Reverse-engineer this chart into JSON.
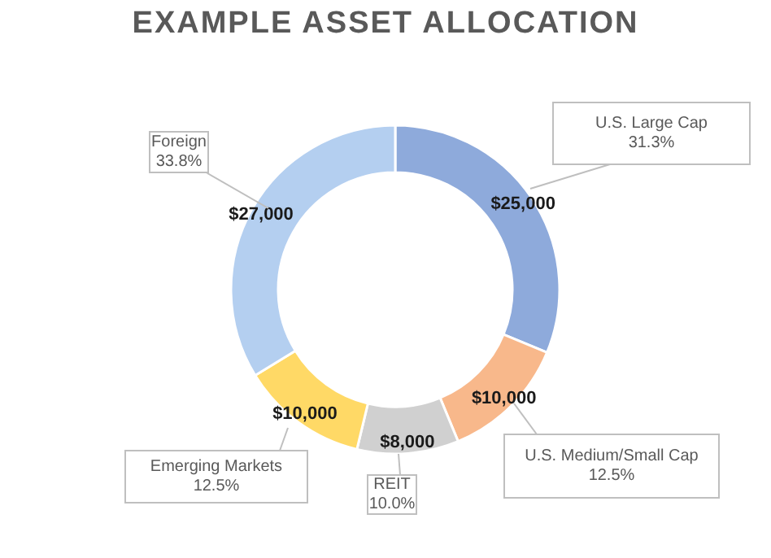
{
  "chart_data": {
    "type": "donut",
    "title": "EXAMPLE ASSET ALLOCATION",
    "categories": [
      "U.S. Large Cap",
      "U.S. Medium/Small Cap",
      "REIT",
      "Emerging Markets",
      "Foreign"
    ],
    "values": [
      25000,
      10000,
      8000,
      10000,
      27000
    ],
    "colors": [
      "#8eaadb",
      "#f8b88b",
      "#d0d0d0",
      "#ffd966",
      "#b4cff0"
    ],
    "value_labels": [
      "$25,000",
      "$10,000",
      "$8,000",
      "$10,000",
      "$27,000"
    ],
    "annotations": [
      "31.3%",
      "12.5%",
      "10.0%",
      "12.5%",
      "33.8%"
    ],
    "legend": false
  }
}
